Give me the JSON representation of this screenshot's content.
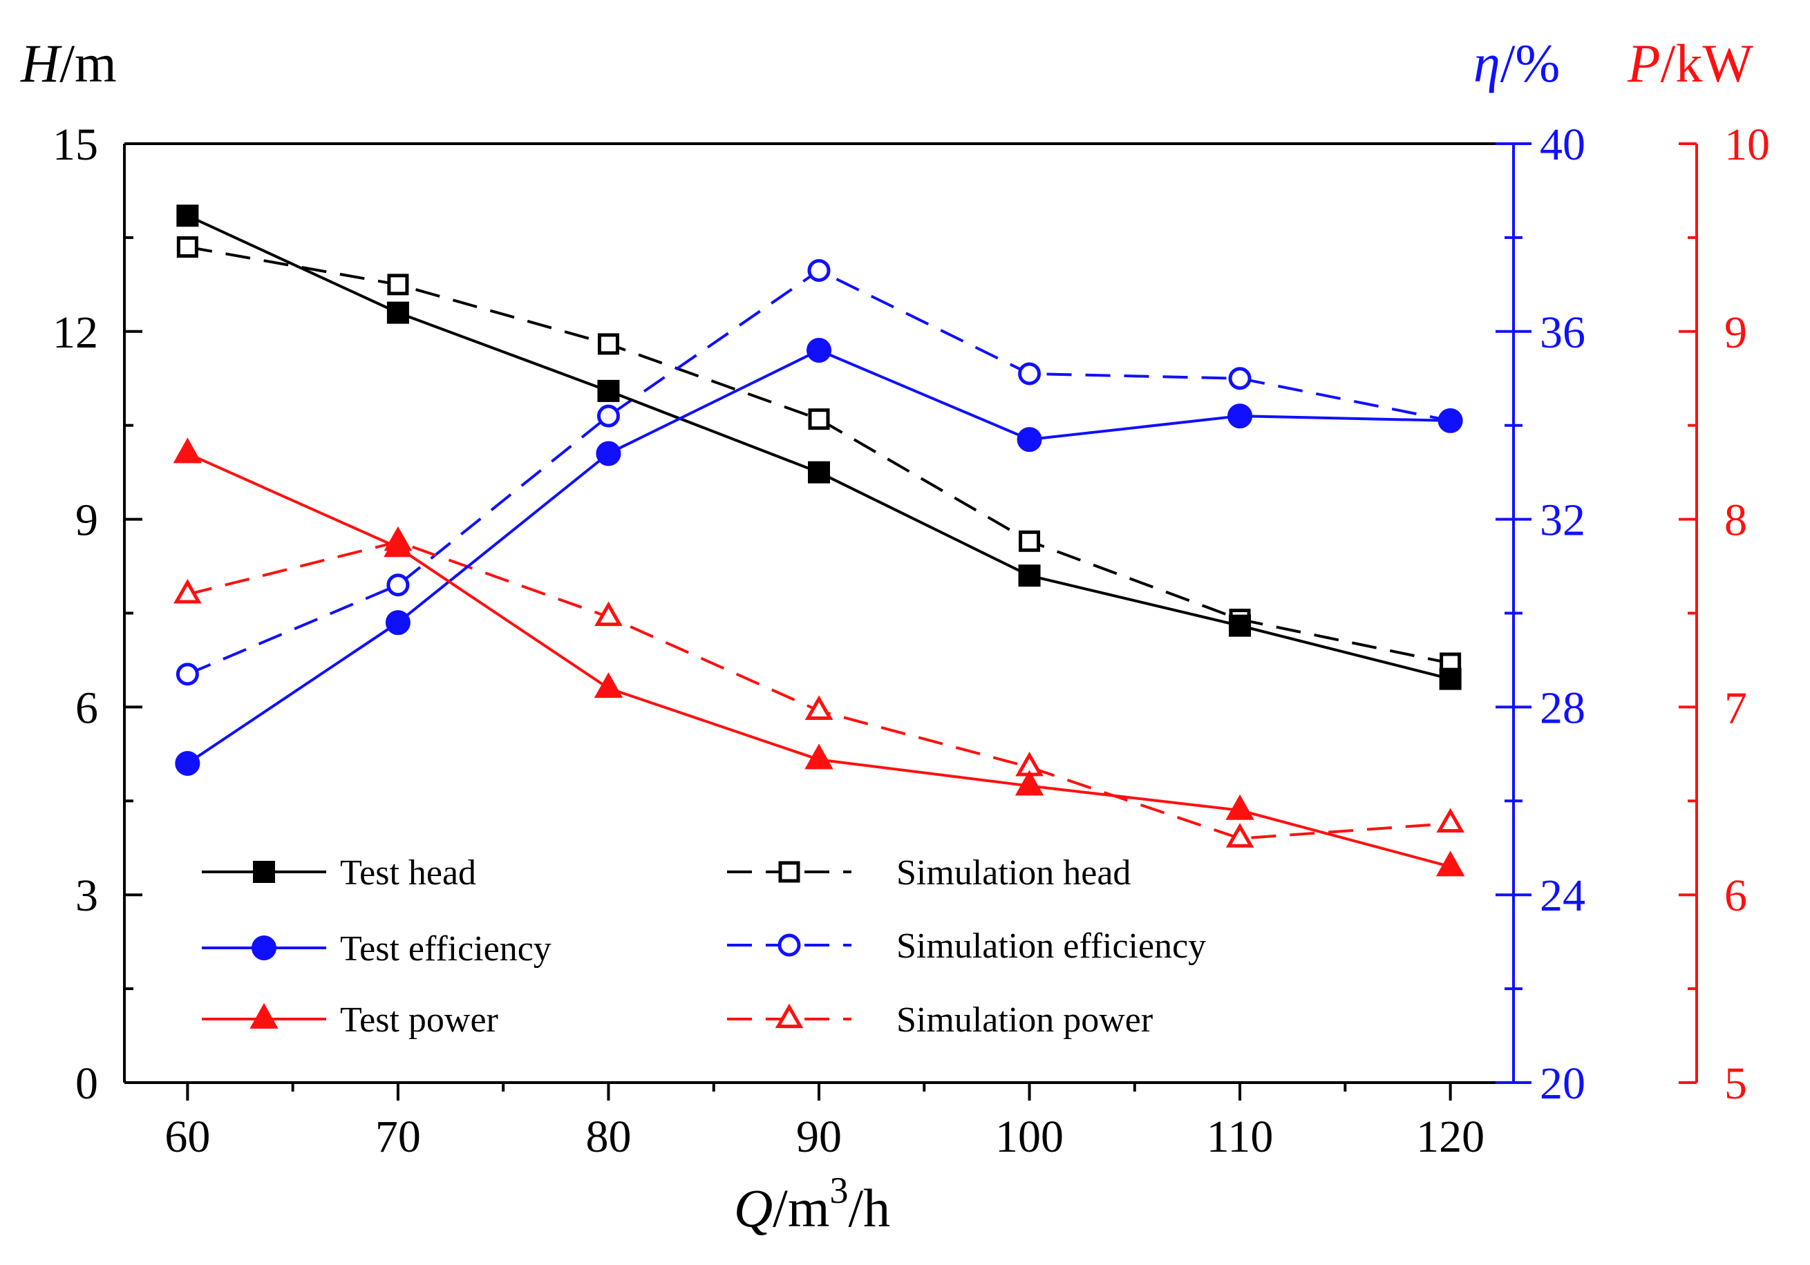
{
  "chart_data": {
    "type": "line",
    "x": [
      60,
      70,
      80,
      90,
      100,
      110,
      120
    ],
    "xlabel": {
      "var": "Q",
      "unit_pre": "/m",
      "sup": "3",
      "unit_post": "/h"
    },
    "xlim": [
      57,
      123
    ],
    "xticks": [
      "60",
      "70",
      "80",
      "90",
      "100",
      "110",
      "120"
    ],
    "axes": {
      "head": {
        "label_var": "H",
        "label_unit": "/m",
        "color": "#000000",
        "lim": [
          0,
          15
        ],
        "ticks": [
          "0",
          "3",
          "6",
          "9",
          "12",
          "15"
        ]
      },
      "efficiency": {
        "label_var": "η",
        "label_unit": "/%",
        "color": "#1010ff",
        "lim": [
          20,
          40
        ],
        "ticks": [
          "20",
          "24",
          "28",
          "32",
          "36",
          "40"
        ]
      },
      "power": {
        "label_var": "P",
        "label_unit": "/kW",
        "color": "#ff1010",
        "lim": [
          5,
          10
        ],
        "ticks": [
          "5",
          "6",
          "7",
          "8",
          "9",
          "10"
        ]
      }
    },
    "series": [
      {
        "name": "Test head",
        "axis": "head",
        "color": "#000000",
        "dash": false,
        "marker": "square",
        "filled": true,
        "values": [
          13.85,
          12.3,
          11.05,
          9.75,
          8.1,
          7.3,
          6.45
        ]
      },
      {
        "name": "Test efficiency",
        "axis": "efficiency",
        "color": "#1010ff",
        "dash": false,
        "marker": "circle",
        "filled": true,
        "values": [
          26.8,
          29.8,
          33.4,
          35.6,
          33.7,
          34.2,
          34.1
        ]
      },
      {
        "name": "Test power",
        "axis": "power",
        "color": "#ff1010",
        "dash": false,
        "marker": "triangle",
        "filled": true,
        "values": [
          8.35,
          7.85,
          7.1,
          6.72,
          6.58,
          6.45,
          6.15
        ]
      },
      {
        "name": "Simulation head",
        "axis": "head",
        "color": "#000000",
        "dash": true,
        "marker": "square",
        "filled": false,
        "values": [
          13.35,
          12.75,
          11.8,
          10.6,
          8.65,
          7.4,
          6.7
        ]
      },
      {
        "name": "Simulation efficiency",
        "axis": "efficiency",
        "color": "#1010ff",
        "dash": true,
        "marker": "circle",
        "filled": false,
        "values": [
          28.7,
          30.6,
          34.2,
          37.3,
          35.1,
          35.0,
          34.1
        ]
      },
      {
        "name": "Simulation power",
        "axis": "power",
        "color": "#ff1010",
        "dash": true,
        "marker": "triangle",
        "filled": false,
        "values": [
          7.6,
          7.88,
          7.48,
          6.98,
          6.68,
          6.3,
          6.38
        ]
      }
    ],
    "legend": {
      "position": "lower-left",
      "columns": 2
    },
    "grid": false
  }
}
